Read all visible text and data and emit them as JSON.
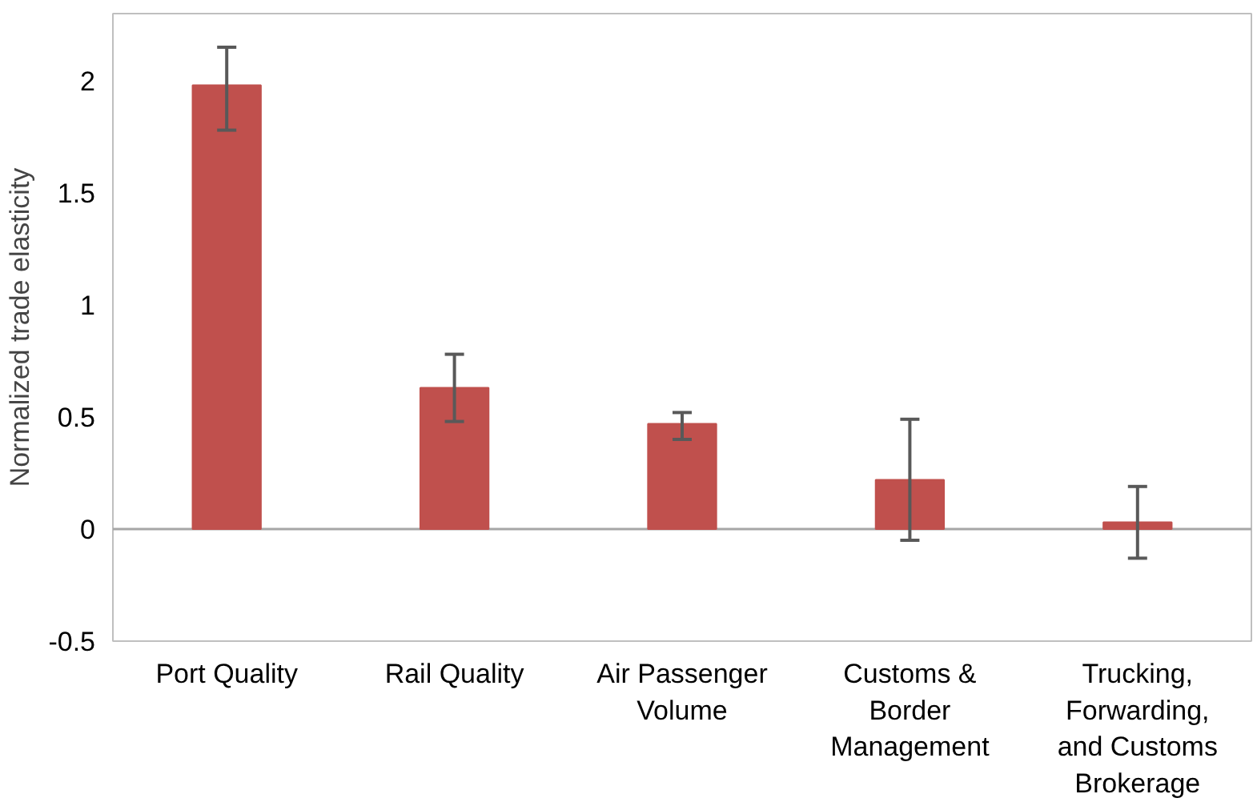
{
  "chart_data": {
    "type": "bar",
    "ylabel": "Normalized trade elasticity",
    "categories": [
      "Port Quality",
      "Rail Quality",
      "Air Passenger Volume",
      "Customs & Border Management",
      "Trucking, Forwarding, and Customs Brokerage"
    ],
    "values": [
      1.98,
      0.63,
      0.47,
      0.22,
      0.03
    ],
    "errors": [
      [
        1.78,
        2.15
      ],
      [
        0.48,
        0.78
      ],
      [
        0.4,
        0.52
      ],
      [
        -0.05,
        0.49
      ],
      [
        -0.13,
        0.19
      ]
    ],
    "color": "#c0504d",
    "ylim": [
      -0.5,
      2.3
    ],
    "yticks": [
      -0.5,
      0,
      0.5,
      1,
      1.5,
      2
    ],
    "ref_lines": [
      {
        "axis": "y",
        "value": 0,
        "color": "#a6a6a6"
      }
    ]
  }
}
